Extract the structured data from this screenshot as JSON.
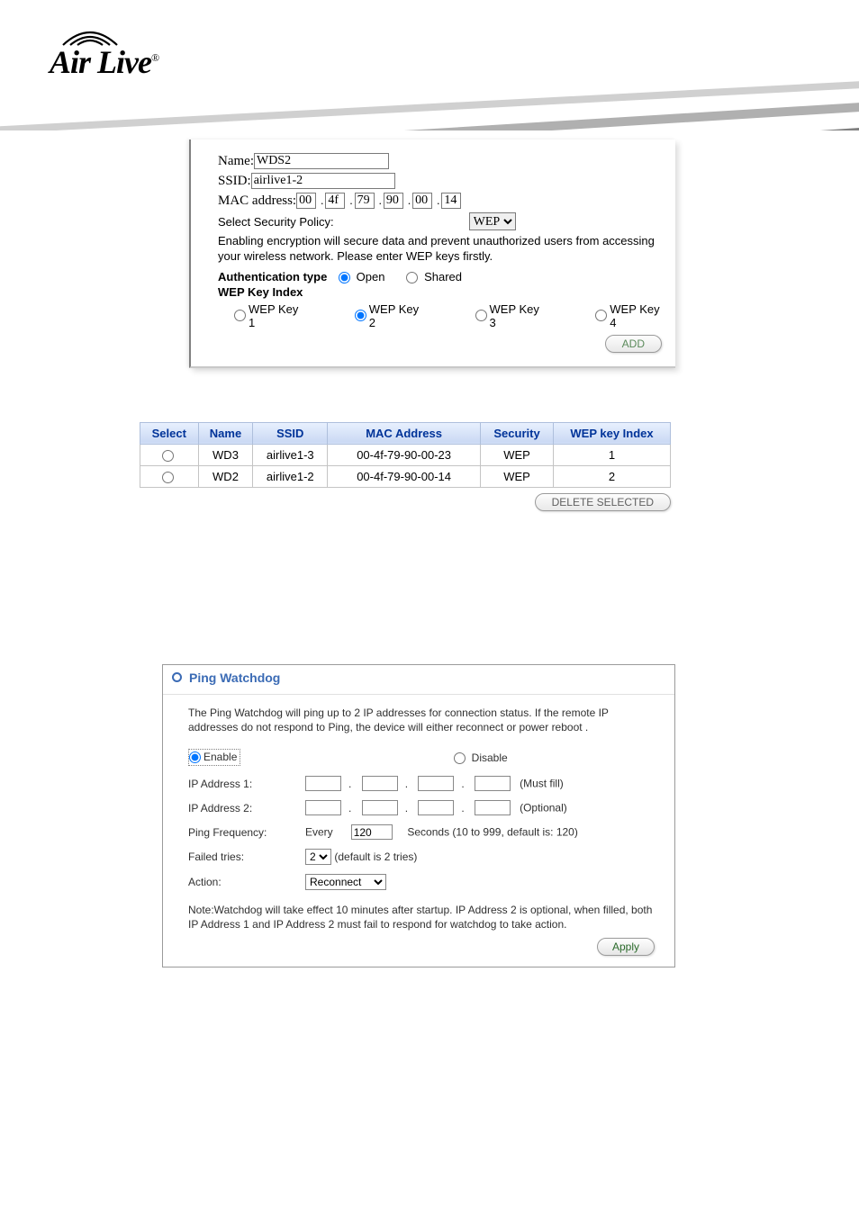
{
  "logo": {
    "text": "Air Live",
    "registered": "®"
  },
  "wds_form": {
    "name_label": "Name:",
    "name_value": "WDS2",
    "ssid_label": "SSID:",
    "ssid_value": "airlive1-2",
    "mac_label": "MAC address:",
    "mac": [
      "00",
      "4f",
      "79",
      "90",
      "00",
      "14"
    ],
    "sec_label": "Select Security Policy:",
    "sec_value": "WEP",
    "desc": "Enabling encryption will secure data and prevent unauthorized users from accessing your wireless network. Please enter WEP keys firstly.",
    "auth_label": "Authentication type",
    "auth_open": "Open",
    "auth_shared": "Shared",
    "auth_selected": "open",
    "wep_index_label": "WEP Key Index",
    "wep_keys": [
      "WEP Key 1",
      "WEP Key 2",
      "WEP Key 3",
      "WEP Key 4"
    ],
    "wep_selected": 1,
    "add_btn": "ADD"
  },
  "wds_table": {
    "headers": [
      "Select",
      "Name",
      "SSID",
      "MAC Address",
      "Security",
      "WEP key Index"
    ],
    "rows": [
      {
        "name": "WD3",
        "ssid": "airlive1-3",
        "mac": "00-4f-79-90-00-23",
        "security": "WEP",
        "index": "1"
      },
      {
        "name": "WD2",
        "ssid": "airlive1-2",
        "mac": "00-4f-79-90-00-14",
        "security": "WEP",
        "index": "2"
      }
    ],
    "delete_btn": "DELETE SELECTED"
  },
  "watchdog": {
    "title": "Ping Watchdog",
    "intro": "The Ping Watchdog will ping up to 2 IP addresses for connection status. If the remote IP addresses do not respond to Ping, the device will either reconnect or power reboot .",
    "enable": "Enable",
    "disable": "Disable",
    "state": "enable",
    "ip1_label": "IP Address 1:",
    "ip1_note": "(Must fill)",
    "ip2_label": "IP Address 2:",
    "ip2_note": "(Optional)",
    "freq_label": "Ping Frequency:",
    "freq_every": "Every",
    "freq_value": "120",
    "freq_note": "Seconds (10 to 999, default is: 120)",
    "tries_label": "Failed tries:",
    "tries_value": "2",
    "tries_note": "(default is 2 tries)",
    "action_label": "Action:",
    "action_value": "Reconnect",
    "note": "Note:Watchdog will take effect 10 minutes after startup. IP Address 2 is optional, when filled, both IP Address 1 and IP Address 2 must fail to respond for watchdog to take action.",
    "apply": "Apply"
  }
}
